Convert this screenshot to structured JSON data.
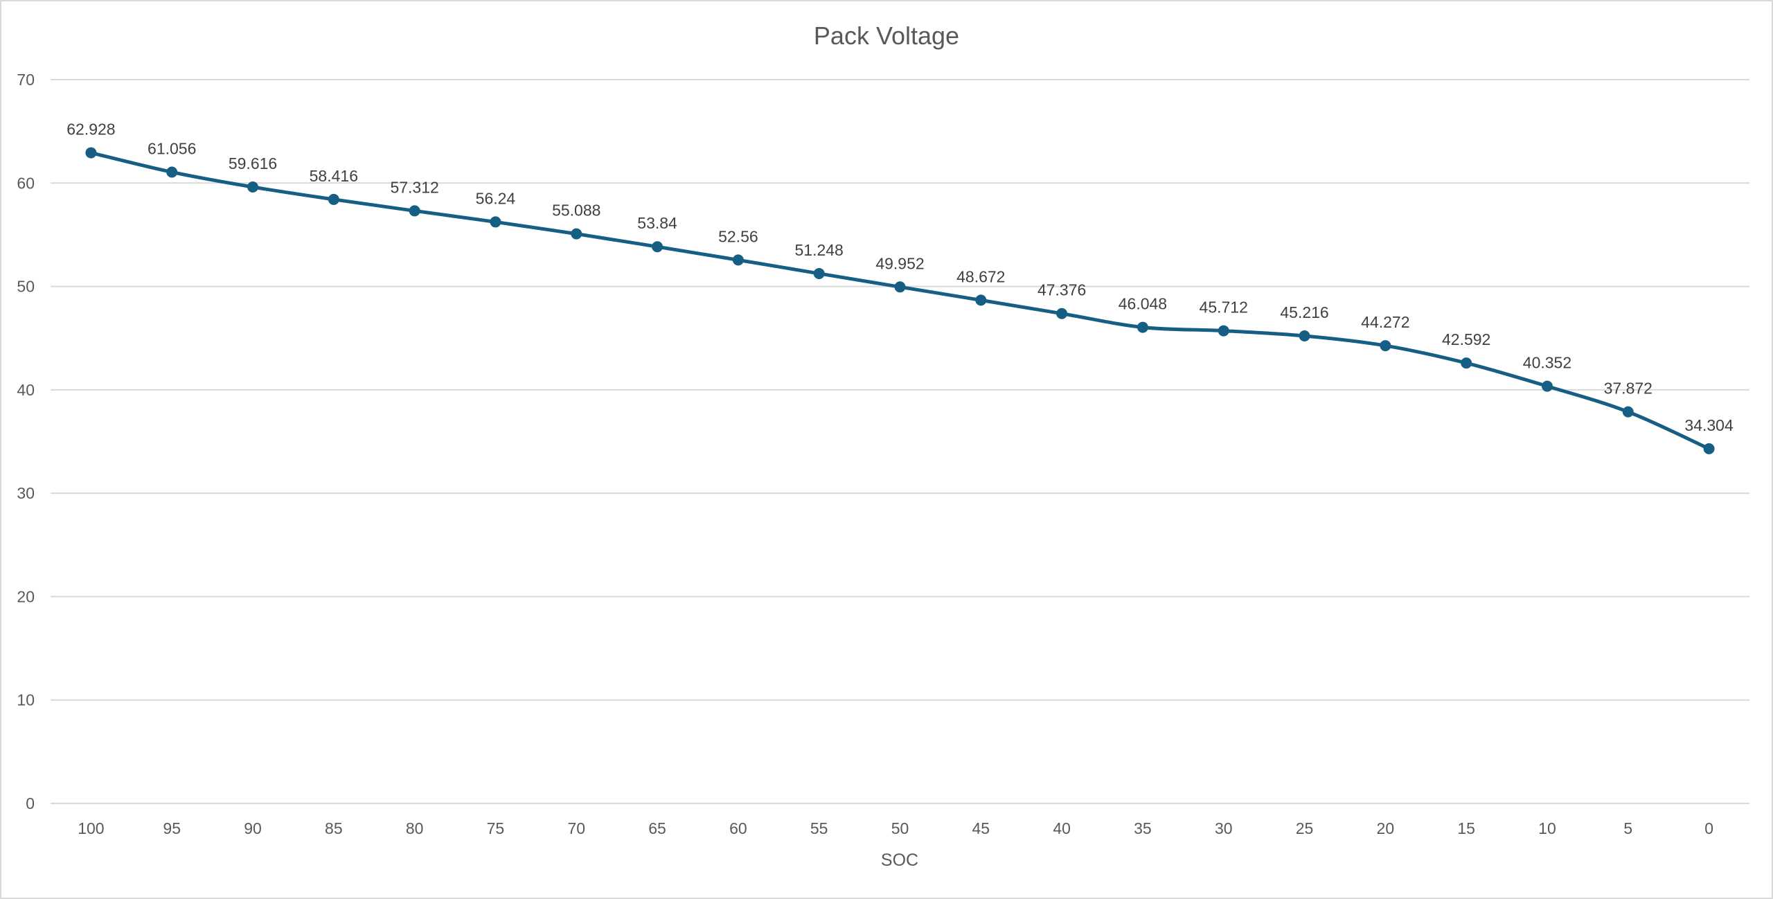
{
  "chart_data": {
    "type": "line",
    "title": "Pack Voltage",
    "xlabel": "SOC",
    "ylabel": "",
    "categories": [
      "100",
      "95",
      "90",
      "85",
      "80",
      "75",
      "70",
      "65",
      "60",
      "55",
      "50",
      "45",
      "40",
      "35",
      "30",
      "25",
      "20",
      "15",
      "10",
      "5",
      "0"
    ],
    "series": [
      {
        "name": "Pack Voltage",
        "values": [
          62.928,
          61.056,
          59.616,
          58.416,
          57.312,
          56.24,
          55.088,
          53.84,
          52.56,
          51.248,
          49.952,
          48.672,
          47.376,
          46.048,
          45.712,
          45.216,
          44.272,
          42.592,
          40.352,
          37.872,
          34.304
        ],
        "labels": [
          "62.928",
          "61.056",
          "59.616",
          "58.416",
          "57.312",
          "56.24",
          "55.088",
          "53.84",
          "52.56",
          "51.248",
          "49.952",
          "48.672",
          "47.376",
          "46.048",
          "45.712",
          "45.216",
          "44.272",
          "42.592",
          "40.352",
          "37.872",
          "34.304"
        ],
        "color": "#165e83",
        "smooth": true,
        "markers": true
      }
    ],
    "ylim": [
      0,
      70
    ],
    "yticks": [
      "0",
      "10",
      "20",
      "30",
      "40",
      "50",
      "60",
      "70"
    ],
    "grid": true,
    "legend": "none"
  }
}
